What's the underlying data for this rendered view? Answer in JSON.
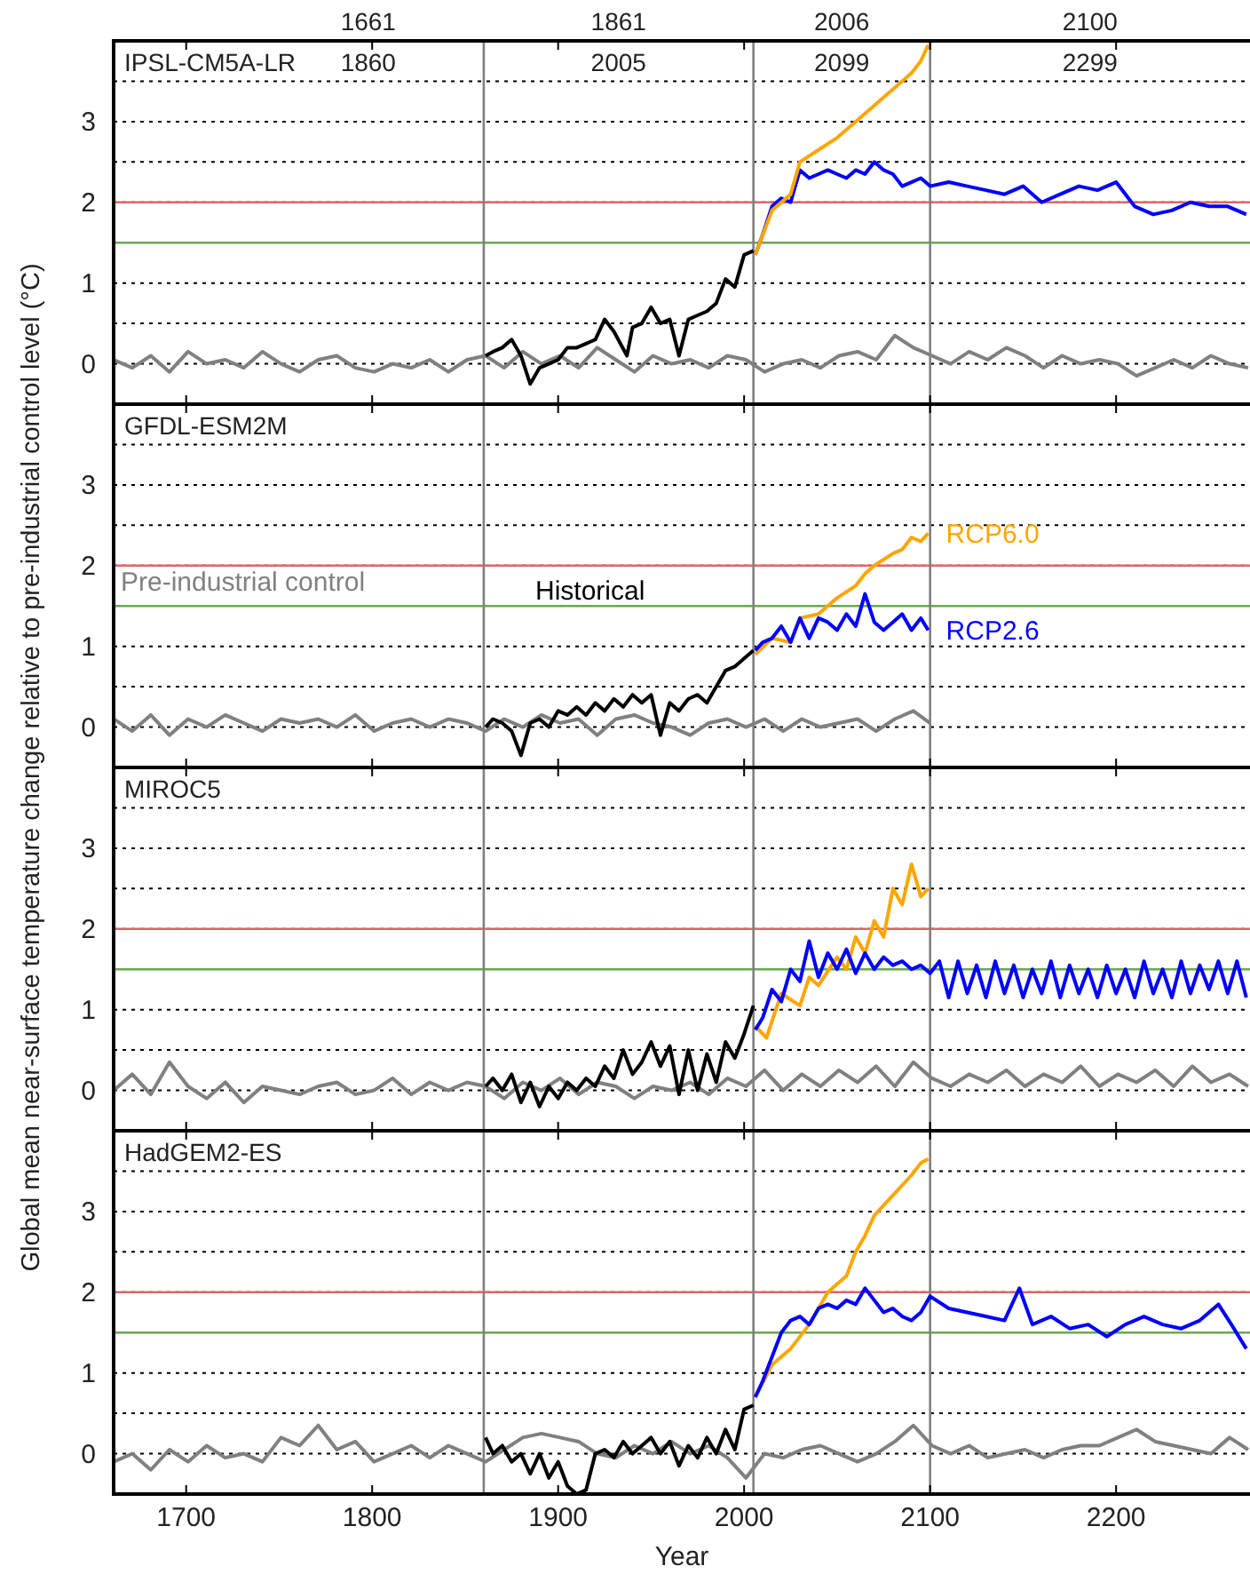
{
  "chart_data": [
    {
      "type": "line",
      "title": "IPSL-CM5A-LR",
      "ylabel": "Global mean near-surface temperature change relative to pre-industrial control level (°C)",
      "xlim": [
        1661,
        2272
      ],
      "xticks": [
        1700,
        1800,
        1900,
        2000,
        2100,
        2200
      ],
      "ylim": [
        -0.5,
        4
      ],
      "yticks": [
        0,
        {
          "value": 0.5,
          "label": null
        },
        1,
        2,
        {
          "value": 2.5,
          "label": null
        },
        3,
        {
          "value": 3.5,
          "label": null
        }
      ],
      "grid": "y",
      "tick_labels": "y",
      "ref_lines": [
        {
          "axis": "y",
          "value": 2,
          "color": "#e06666"
        },
        {
          "axis": "y",
          "value": 1.5,
          "color": "#6aa84f"
        },
        {
          "axis": "x",
          "value": 1860,
          "color": "#808080"
        },
        {
          "axis": "x",
          "value": 2005,
          "color": "#808080"
        },
        {
          "axis": "x",
          "value": 2100,
          "color": "#808080"
        }
      ],
      "annotations": [
        "1661",
        "1860",
        "1861",
        "2005",
        "2006",
        "2099",
        "2100",
        "2299"
      ],
      "series": [
        {
          "color": "#808080",
          "x": [
            1661,
            1671,
            1681,
            1691,
            1701,
            1711,
            1721,
            1731,
            1741,
            1751,
            1761,
            1771,
            1781,
            1791,
            1801,
            1811,
            1821,
            1831,
            1841,
            1851,
            1861,
            1871,
            1881,
            1891,
            1901,
            1911,
            1921,
            1931,
            1941,
            1951,
            1961,
            1971,
            1981,
            1991,
            2001,
            2011,
            2021,
            2031,
            2041,
            2051,
            2061,
            2071,
            2081,
            2091,
            2101,
            2111,
            2121,
            2131,
            2141,
            2151,
            2161,
            2171,
            2181,
            2191,
            2201,
            2211,
            2221,
            2231,
            2241,
            2251,
            2261,
            2271
          ],
          "values": [
            0.05,
            -0.05,
            0.1,
            -0.1,
            0.15,
            0,
            0.05,
            -0.05,
            0.15,
            0,
            -0.1,
            0.05,
            0.1,
            -0.05,
            -0.1,
            0.0,
            -0.05,
            0.05,
            -0.1,
            0.05,
            0.1,
            -0.05,
            0.15,
            0,
            0.1,
            -0.05,
            0.2,
            0.05,
            -0.1,
            0.1,
            0,
            0.05,
            -0.05,
            0.1,
            0.05,
            -0.1,
            0,
            0.05,
            -0.05,
            0.1,
            0.15,
            0.05,
            0.35,
            0.2,
            0.1,
            0.0,
            0.15,
            0.05,
            0.2,
            0.1,
            -0.05,
            0.1,
            0.0,
            0.05,
            0.0,
            -0.15,
            -0.05,
            0.05,
            -0.05,
            0.1,
            0.0,
            -0.05
          ]
        },
        {
          "color": "#000000",
          "x": [
            1861,
            1865,
            1870,
            1875,
            1880,
            1885,
            1890,
            1895,
            1900,
            1905,
            1910,
            1915,
            1920,
            1925,
            1930,
            1937,
            1940,
            1945,
            1950,
            1955,
            1960,
            1965,
            1970,
            1975,
            1980,
            1985,
            1990,
            1995,
            2000,
            2005
          ],
          "values": [
            0.1,
            0.15,
            0.2,
            0.3,
            0.1,
            -0.25,
            -0.05,
            0,
            0.05,
            0.2,
            0.2,
            0.25,
            0.3,
            0.55,
            0.4,
            0.1,
            0.45,
            0.5,
            0.7,
            0.5,
            0.55,
            0.1,
            0.55,
            0.6,
            0.65,
            0.75,
            1.05,
            0.95,
            1.35,
            1.4
          ]
        },
        {
          "color": "#0000ff",
          "x": [
            2006,
            2010,
            2015,
            2020,
            2025,
            2030,
            2035,
            2040,
            2045,
            2050,
            2055,
            2060,
            2065,
            2070,
            2075,
            2080,
            2085,
            2090,
            2095,
            2100,
            2110,
            2120,
            2130,
            2140,
            2150,
            2160,
            2170,
            2180,
            2190,
            2200,
            2210,
            2220,
            2230,
            2240,
            2250,
            2260,
            2270
          ],
          "values": [
            1.35,
            1.6,
            1.95,
            2.05,
            2.0,
            2.4,
            2.3,
            2.35,
            2.4,
            2.35,
            2.3,
            2.4,
            2.35,
            2.5,
            2.4,
            2.35,
            2.2,
            2.25,
            2.3,
            2.2,
            2.25,
            2.2,
            2.15,
            2.1,
            2.2,
            2.0,
            2.1,
            2.2,
            2.15,
            2.25,
            1.95,
            1.85,
            1.9,
            2.0,
            1.95,
            1.95,
            1.85
          ]
        },
        {
          "color": "#ffa500",
          "x": [
            2006,
            2015,
            2025,
            2030,
            2040,
            2050,
            2060,
            2070,
            2080,
            2090,
            2095,
            2099
          ],
          "values": [
            1.35,
            1.9,
            2.1,
            2.5,
            2.65,
            2.8,
            3.0,
            3.2,
            3.4,
            3.6,
            3.75,
            3.95
          ]
        }
      ]
    },
    {
      "type": "line",
      "title": "GFDL-ESM2M",
      "xlim": [
        1661,
        2272
      ],
      "xticks": [
        1700,
        1800,
        1900,
        2000,
        2100,
        2200
      ],
      "ylim": [
        -0.5,
        4
      ],
      "yticks": [
        0,
        {
          "value": 0.5,
          "label": null
        },
        1,
        2,
        {
          "value": 2.5,
          "label": null
        },
        3,
        {
          "value": 3.5,
          "label": null
        }
      ],
      "grid": "y",
      "tick_labels": "y",
      "ref_lines": [
        {
          "axis": "y",
          "value": 2,
          "color": "#e06666"
        },
        {
          "axis": "y",
          "value": 1.5,
          "color": "#6aa84f"
        },
        {
          "axis": "x",
          "value": 1860,
          "color": "#808080"
        },
        {
          "axis": "x",
          "value": 2005,
          "color": "#808080"
        },
        {
          "axis": "x",
          "value": 2100,
          "color": "#808080"
        }
      ],
      "series": [
        {
          "name": "Pre-industrial control",
          "color": "#808080",
          "x": [
            1661,
            1671,
            1681,
            1691,
            1701,
            1711,
            1721,
            1731,
            1741,
            1751,
            1761,
            1771,
            1781,
            1791,
            1801,
            1811,
            1821,
            1831,
            1841,
            1851,
            1861,
            1871,
            1881,
            1891,
            1901,
            1911,
            1921,
            1931,
            1941,
            1951,
            1961,
            1971,
            1981,
            1991,
            2001,
            2011,
            2021,
            2031,
            2041,
            2051,
            2061,
            2071,
            2081,
            2091,
            2100
          ],
          "values": [
            0.1,
            -0.05,
            0.15,
            -0.1,
            0.1,
            0.0,
            0.15,
            0.05,
            -0.05,
            0.1,
            0.05,
            0.1,
            0.0,
            0.15,
            -0.05,
            0.05,
            0.1,
            0.0,
            0.1,
            0.05,
            -0.05,
            0.1,
            0.0,
            0.15,
            0.05,
            0.1,
            -0.1,
            0.1,
            0.15,
            0.05,
            0.0,
            -0.1,
            0.05,
            0.1,
            0.0,
            0.1,
            -0.05,
            0.1,
            0.0,
            0.05,
            0.1,
            -0.05,
            0.1,
            0.2,
            0.05
          ]
        },
        {
          "name": "Historical",
          "color": "#000000",
          "x": [
            1861,
            1865,
            1870,
            1875,
            1880,
            1885,
            1890,
            1895,
            1900,
            1905,
            1910,
            1915,
            1920,
            1925,
            1930,
            1935,
            1940,
            1945,
            1950,
            1955,
            1960,
            1965,
            1970,
            1975,
            1980,
            1985,
            1990,
            1995,
            2000,
            2005
          ],
          "values": [
            0.0,
            0.1,
            0.05,
            -0.05,
            -0.35,
            0.05,
            0.1,
            0.0,
            0.2,
            0.15,
            0.25,
            0.15,
            0.3,
            0.2,
            0.35,
            0.25,
            0.4,
            0.3,
            0.4,
            -0.1,
            0.3,
            0.2,
            0.35,
            0.4,
            0.3,
            0.5,
            0.7,
            0.75,
            0.85,
            0.95
          ]
        },
        {
          "name": "RCP6.0",
          "color": "#ffa500",
          "x": [
            2006,
            2015,
            2025,
            2030,
            2040,
            2050,
            2060,
            2065,
            2070,
            2080,
            2085,
            2090,
            2095,
            2099
          ],
          "values": [
            0.9,
            1.1,
            1.05,
            1.35,
            1.4,
            1.6,
            1.75,
            1.9,
            2.0,
            2.15,
            2.2,
            2.35,
            2.3,
            2.4
          ]
        },
        {
          "name": "RCP2.6",
          "color": "#0000ff",
          "x": [
            2006,
            2010,
            2015,
            2020,
            2025,
            2030,
            2035,
            2040,
            2045,
            2050,
            2055,
            2060,
            2065,
            2070,
            2075,
            2080,
            2085,
            2090,
            2095,
            2099
          ],
          "values": [
            0.95,
            1.05,
            1.1,
            1.25,
            1.05,
            1.35,
            1.1,
            1.35,
            1.3,
            1.2,
            1.4,
            1.25,
            1.65,
            1.3,
            1.2,
            1.3,
            1.4,
            1.2,
            1.35,
            1.2
          ]
        }
      ]
    },
    {
      "type": "line",
      "title": "MIROC5",
      "xlim": [
        1661,
        2272
      ],
      "xticks": [
        1700,
        1800,
        1900,
        2000,
        2100,
        2200
      ],
      "ylim": [
        -0.5,
        4
      ],
      "yticks": [
        0,
        {
          "value": 0.5,
          "label": null
        },
        1,
        2,
        {
          "value": 2.5,
          "label": null
        },
        3,
        {
          "value": 3.5,
          "label": null
        }
      ],
      "grid": "y",
      "tick_labels": "y",
      "ref_lines": [
        {
          "axis": "y",
          "value": 2,
          "color": "#e06666"
        },
        {
          "axis": "y",
          "value": 1.5,
          "color": "#6aa84f"
        },
        {
          "axis": "x",
          "value": 1860,
          "color": "#808080"
        },
        {
          "axis": "x",
          "value": 2005,
          "color": "#808080"
        },
        {
          "axis": "x",
          "value": 2100,
          "color": "#808080"
        }
      ],
      "series": [
        {
          "color": "#808080",
          "x": [
            1661,
            1671,
            1681,
            1691,
            1701,
            1711,
            1721,
            1731,
            1741,
            1751,
            1761,
            1771,
            1781,
            1791,
            1801,
            1811,
            1821,
            1831,
            1841,
            1851,
            1861,
            1871,
            1881,
            1891,
            1901,
            1911,
            1921,
            1931,
            1941,
            1951,
            1961,
            1971,
            1981,
            1991,
            2001,
            2011,
            2021,
            2031,
            2041,
            2051,
            2061,
            2071,
            2081,
            2091,
            2101,
            2111,
            2121,
            2131,
            2141,
            2151,
            2161,
            2171,
            2181,
            2191,
            2201,
            2211,
            2221,
            2231,
            2241,
            2251,
            2261,
            2271
          ],
          "values": [
            0.0,
            0.2,
            -0.05,
            0.35,
            0.05,
            -0.1,
            0.1,
            -0.15,
            0.05,
            0.0,
            -0.05,
            0.05,
            0.1,
            -0.05,
            0.0,
            0.15,
            -0.05,
            0.1,
            0.0,
            0.1,
            0.05,
            -0.1,
            0.1,
            0.0,
            0.15,
            -0.05,
            0.1,
            0.05,
            -0.1,
            0.05,
            0.0,
            0.1,
            -0.05,
            0.15,
            0.05,
            0.25,
            0.0,
            0.2,
            0.05,
            0.25,
            0.1,
            0.3,
            0.05,
            0.35,
            0.15,
            0.05,
            0.2,
            0.1,
            0.25,
            0.05,
            0.2,
            0.1,
            0.3,
            0.05,
            0.2,
            0.1,
            0.25,
            0.05,
            0.3,
            0.1,
            0.2,
            0.05
          ]
        },
        {
          "color": "#000000",
          "x": [
            1861,
            1865,
            1870,
            1875,
            1880,
            1885,
            1890,
            1895,
            1900,
            1905,
            1910,
            1915,
            1920,
            1925,
            1930,
            1935,
            1940,
            1945,
            1950,
            1955,
            1960,
            1965,
            1970,
            1975,
            1980,
            1985,
            1990,
            1995,
            2000,
            2005
          ],
          "values": [
            0.05,
            0.15,
            0.0,
            0.2,
            -0.15,
            0.1,
            -0.2,
            0.05,
            -0.1,
            0.1,
            0.0,
            0.15,
            0.05,
            0.3,
            0.15,
            0.5,
            0.2,
            0.35,
            0.6,
            0.3,
            0.55,
            -0.05,
            0.5,
            0.0,
            0.45,
            0.1,
            0.6,
            0.4,
            0.7,
            1.05
          ]
        },
        {
          "color": "#ffa500",
          "x": [
            2006,
            2012,
            2020,
            2030,
            2035,
            2040,
            2050,
            2055,
            2060,
            2065,
            2070,
            2075,
            2080,
            2085,
            2090,
            2095,
            2099
          ],
          "values": [
            0.8,
            0.65,
            1.2,
            1.05,
            1.4,
            1.3,
            1.65,
            1.5,
            1.9,
            1.7,
            2.1,
            1.9,
            2.5,
            2.3,
            2.8,
            2.4,
            2.5
          ]
        },
        {
          "color": "#0000ff",
          "x": [
            2006,
            2010,
            2015,
            2020,
            2025,
            2030,
            2035,
            2040,
            2045,
            2050,
            2055,
            2060,
            2065,
            2070,
            2075,
            2080,
            2085,
            2090,
            2095,
            2100,
            2105,
            2110,
            2115,
            2120,
            2125,
            2130,
            2135,
            2140,
            2145,
            2150,
            2155,
            2160,
            2165,
            2170,
            2175,
            2180,
            2185,
            2190,
            2195,
            2200,
            2205,
            2210,
            2215,
            2220,
            2225,
            2230,
            2235,
            2240,
            2245,
            2250,
            2255,
            2260,
            2265,
            2270
          ],
          "values": [
            0.75,
            0.9,
            1.25,
            1.1,
            1.5,
            1.35,
            1.85,
            1.4,
            1.7,
            1.5,
            1.75,
            1.45,
            1.7,
            1.5,
            1.65,
            1.55,
            1.6,
            1.5,
            1.55,
            1.45,
            1.6,
            1.15,
            1.6,
            1.2,
            1.55,
            1.15,
            1.6,
            1.2,
            1.55,
            1.15,
            1.5,
            1.2,
            1.6,
            1.15,
            1.55,
            1.2,
            1.5,
            1.15,
            1.55,
            1.2,
            1.5,
            1.15,
            1.6,
            1.2,
            1.5,
            1.15,
            1.6,
            1.2,
            1.55,
            1.25,
            1.6,
            1.2,
            1.6,
            1.15
          ]
        }
      ]
    },
    {
      "type": "line",
      "title": "HadGEM2-ES",
      "xlabel": "Year",
      "xlim": [
        1661,
        2272
      ],
      "xticks": [
        1700,
        1800,
        1900,
        2000,
        2100,
        2200
      ],
      "ylim": [
        -0.5,
        4
      ],
      "yticks": [
        0,
        {
          "value": 0.5,
          "label": null
        },
        1,
        2,
        {
          "value": 2.5,
          "label": null
        },
        3,
        {
          "value": 3.5,
          "label": null
        }
      ],
      "grid": "y",
      "ref_lines": [
        {
          "axis": "y",
          "value": 2,
          "color": "#e06666"
        },
        {
          "axis": "y",
          "value": 1.5,
          "color": "#6aa84f"
        },
        {
          "axis": "x",
          "value": 1860,
          "color": "#808080"
        },
        {
          "axis": "x",
          "value": 2005,
          "color": "#808080"
        },
        {
          "axis": "x",
          "value": 2100,
          "color": "#808080"
        }
      ],
      "series": [
        {
          "color": "#808080",
          "x": [
            1661,
            1671,
            1681,
            1691,
            1701,
            1711,
            1721,
            1731,
            1741,
            1751,
            1761,
            1771,
            1781,
            1791,
            1801,
            1811,
            1821,
            1831,
            1841,
            1851,
            1861,
            1871,
            1881,
            1891,
            1901,
            1911,
            1921,
            1931,
            1941,
            1951,
            1961,
            1971,
            1981,
            1991,
            2001,
            2011,
            2021,
            2031,
            2041,
            2051,
            2061,
            2071,
            2081,
            2091,
            2101,
            2111,
            2121,
            2131,
            2141,
            2151,
            2161,
            2171,
            2181,
            2191,
            2201,
            2211,
            2221,
            2231,
            2241,
            2251,
            2261,
            2271
          ],
          "values": [
            -0.1,
            0.0,
            -0.2,
            0.05,
            -0.1,
            0.1,
            -0.05,
            0.0,
            -0.1,
            0.2,
            0.1,
            0.35,
            0.05,
            0.15,
            -0.1,
            0.0,
            0.1,
            -0.05,
            0.1,
            0.0,
            -0.1,
            0.05,
            0.2,
            0.25,
            0.2,
            0.15,
            0.0,
            -0.05,
            0.1,
            0.0,
            0.15,
            0.0,
            0.1,
            -0.05,
            -0.3,
            0.0,
            -0.05,
            0.05,
            0.1,
            0.0,
            -0.1,
            0.0,
            0.15,
            0.35,
            0.1,
            0.0,
            0.1,
            -0.05,
            0.0,
            0.05,
            -0.05,
            0.05,
            0.1,
            0.1,
            0.2,
            0.3,
            0.15,
            0.1,
            0.05,
            0.0,
            0.2,
            0.05
          ]
        },
        {
          "color": "#000000",
          "x": [
            1861,
            1865,
            1870,
            1875,
            1880,
            1885,
            1890,
            1895,
            1900,
            1905,
            1910,
            1915,
            1920,
            1925,
            1930,
            1935,
            1940,
            1945,
            1950,
            1955,
            1960,
            1965,
            1970,
            1975,
            1980,
            1985,
            1990,
            1995,
            2000,
            2005
          ],
          "values": [
            0.2,
            0.0,
            0.1,
            -0.1,
            0.0,
            -0.25,
            0.0,
            -0.3,
            -0.1,
            -0.4,
            -0.5,
            -0.45,
            0.0,
            0.05,
            -0.05,
            0.15,
            0.0,
            0.1,
            0.2,
            0.0,
            0.15,
            -0.15,
            0.1,
            -0.05,
            0.2,
            0.0,
            0.3,
            0.05,
            0.55,
            0.6
          ]
        },
        {
          "color": "#ffa500",
          "x": [
            2006,
            2015,
            2025,
            2035,
            2045,
            2055,
            2060,
            2065,
            2070,
            2080,
            2090,
            2095,
            2099
          ],
          "values": [
            0.7,
            1.1,
            1.3,
            1.6,
            2.0,
            2.2,
            2.5,
            2.7,
            2.95,
            3.2,
            3.45,
            3.6,
            3.65
          ]
        },
        {
          "color": "#0000ff",
          "x": [
            2006,
            2010,
            2015,
            2020,
            2025,
            2030,
            2035,
            2040,
            2045,
            2050,
            2055,
            2060,
            2065,
            2070,
            2075,
            2080,
            2085,
            2090,
            2095,
            2100,
            2110,
            2120,
            2130,
            2140,
            2148,
            2155,
            2165,
            2175,
            2185,
            2195,
            2205,
            2215,
            2225,
            2235,
            2245,
            2255,
            2262,
            2270
          ],
          "values": [
            0.7,
            0.9,
            1.2,
            1.5,
            1.65,
            1.7,
            1.6,
            1.8,
            1.85,
            1.8,
            1.9,
            1.85,
            2.05,
            1.9,
            1.75,
            1.8,
            1.7,
            1.65,
            1.75,
            1.95,
            1.8,
            1.75,
            1.7,
            1.65,
            2.05,
            1.6,
            1.7,
            1.55,
            1.6,
            1.45,
            1.6,
            1.7,
            1.6,
            1.55,
            1.65,
            1.85,
            1.6,
            1.3
          ]
        }
      ]
    }
  ]
}
